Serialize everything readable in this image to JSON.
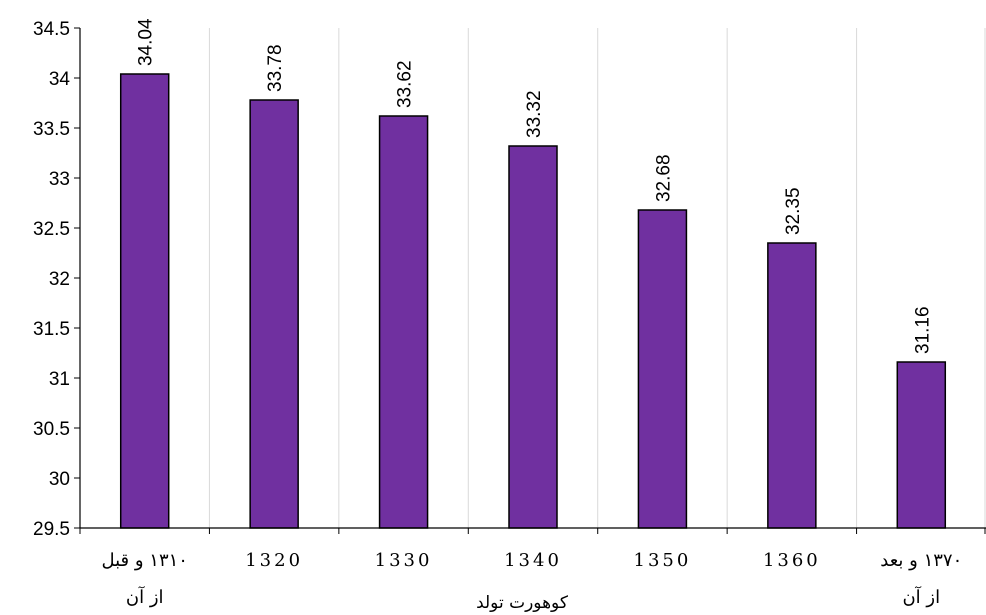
{
  "chart_data": {
    "type": "bar",
    "categories": [
      [
        "۱۳۱۰ و قبل",
        "از آن"
      ],
      [
        "1320"
      ],
      [
        "1330"
      ],
      [
        "1340"
      ],
      [
        "1350"
      ],
      [
        "1360"
      ],
      [
        "۱۳۷۰ و بعد",
        "از آن"
      ]
    ],
    "values": [
      34.04,
      33.78,
      33.62,
      33.32,
      32.68,
      32.35,
      31.16
    ],
    "value_labels": [
      "34.04",
      "33.78",
      "33.62",
      "33.32",
      "32.68",
      "32.35",
      "31.16"
    ],
    "y_ticks": [
      "29.5",
      "30",
      "30.5",
      "31",
      "31.5",
      "32",
      "32.5",
      "33",
      "33.5",
      "34",
      "34.5"
    ],
    "ylim": [
      29.5,
      34.5
    ],
    "xlabel": "کوهورت تولد",
    "ylabel": "",
    "title": "",
    "grid": "vertical",
    "colors": {
      "bar": "#7030A0",
      "bar_edge": "#000000",
      "grid": "#d9d9d9",
      "axis": "#000000"
    }
  }
}
